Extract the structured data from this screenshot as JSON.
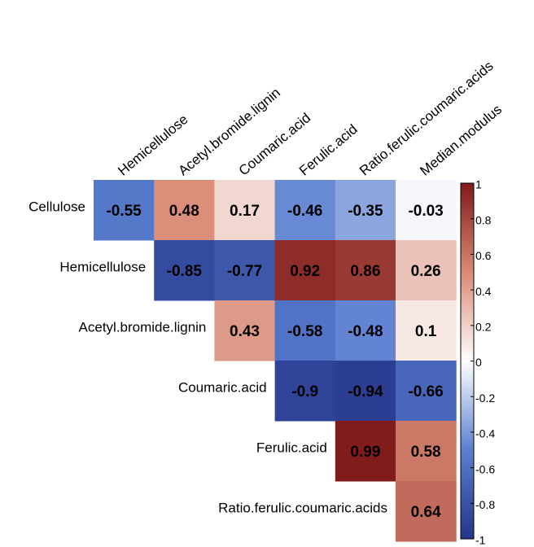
{
  "chart_data": {
    "type": "heatmap",
    "rows": [
      "Cellulose",
      "Hemicellulose",
      "Acetyl.bromide.lignin",
      "Coumaric.acid",
      "Ferulic.acid",
      "Ratio.ferulic.coumaric.acids"
    ],
    "columns": [
      "Hemicellulose",
      "Acetyl.bromide.lignin",
      "Coumaric.acid",
      "Ferulic.acid",
      "Ratio.ferulic.coumaric.acids",
      "Median.modulus"
    ],
    "values": [
      [
        -0.55,
        0.48,
        0.17,
        -0.46,
        -0.35,
        -0.03
      ],
      [
        null,
        -0.85,
        -0.77,
        0.92,
        0.86,
        0.26
      ],
      [
        null,
        null,
        0.43,
        -0.58,
        -0.48,
        0.1
      ],
      [
        null,
        null,
        null,
        -0.9,
        -0.94,
        -0.66
      ],
      [
        null,
        null,
        null,
        null,
        0.99,
        0.58
      ],
      [
        null,
        null,
        null,
        null,
        null,
        0.64
      ]
    ],
    "colors": [
      "#24358a",
      "#5b7fd0",
      "#ffffff",
      "#d98a75",
      "#7f1a1a"
    ],
    "colorlim": [
      -1,
      1
    ],
    "colorticks": [
      1,
      0.8,
      0.6,
      0.4,
      0.2,
      0,
      -0.2,
      -0.4,
      -0.6,
      -0.8,
      -1
    ]
  }
}
